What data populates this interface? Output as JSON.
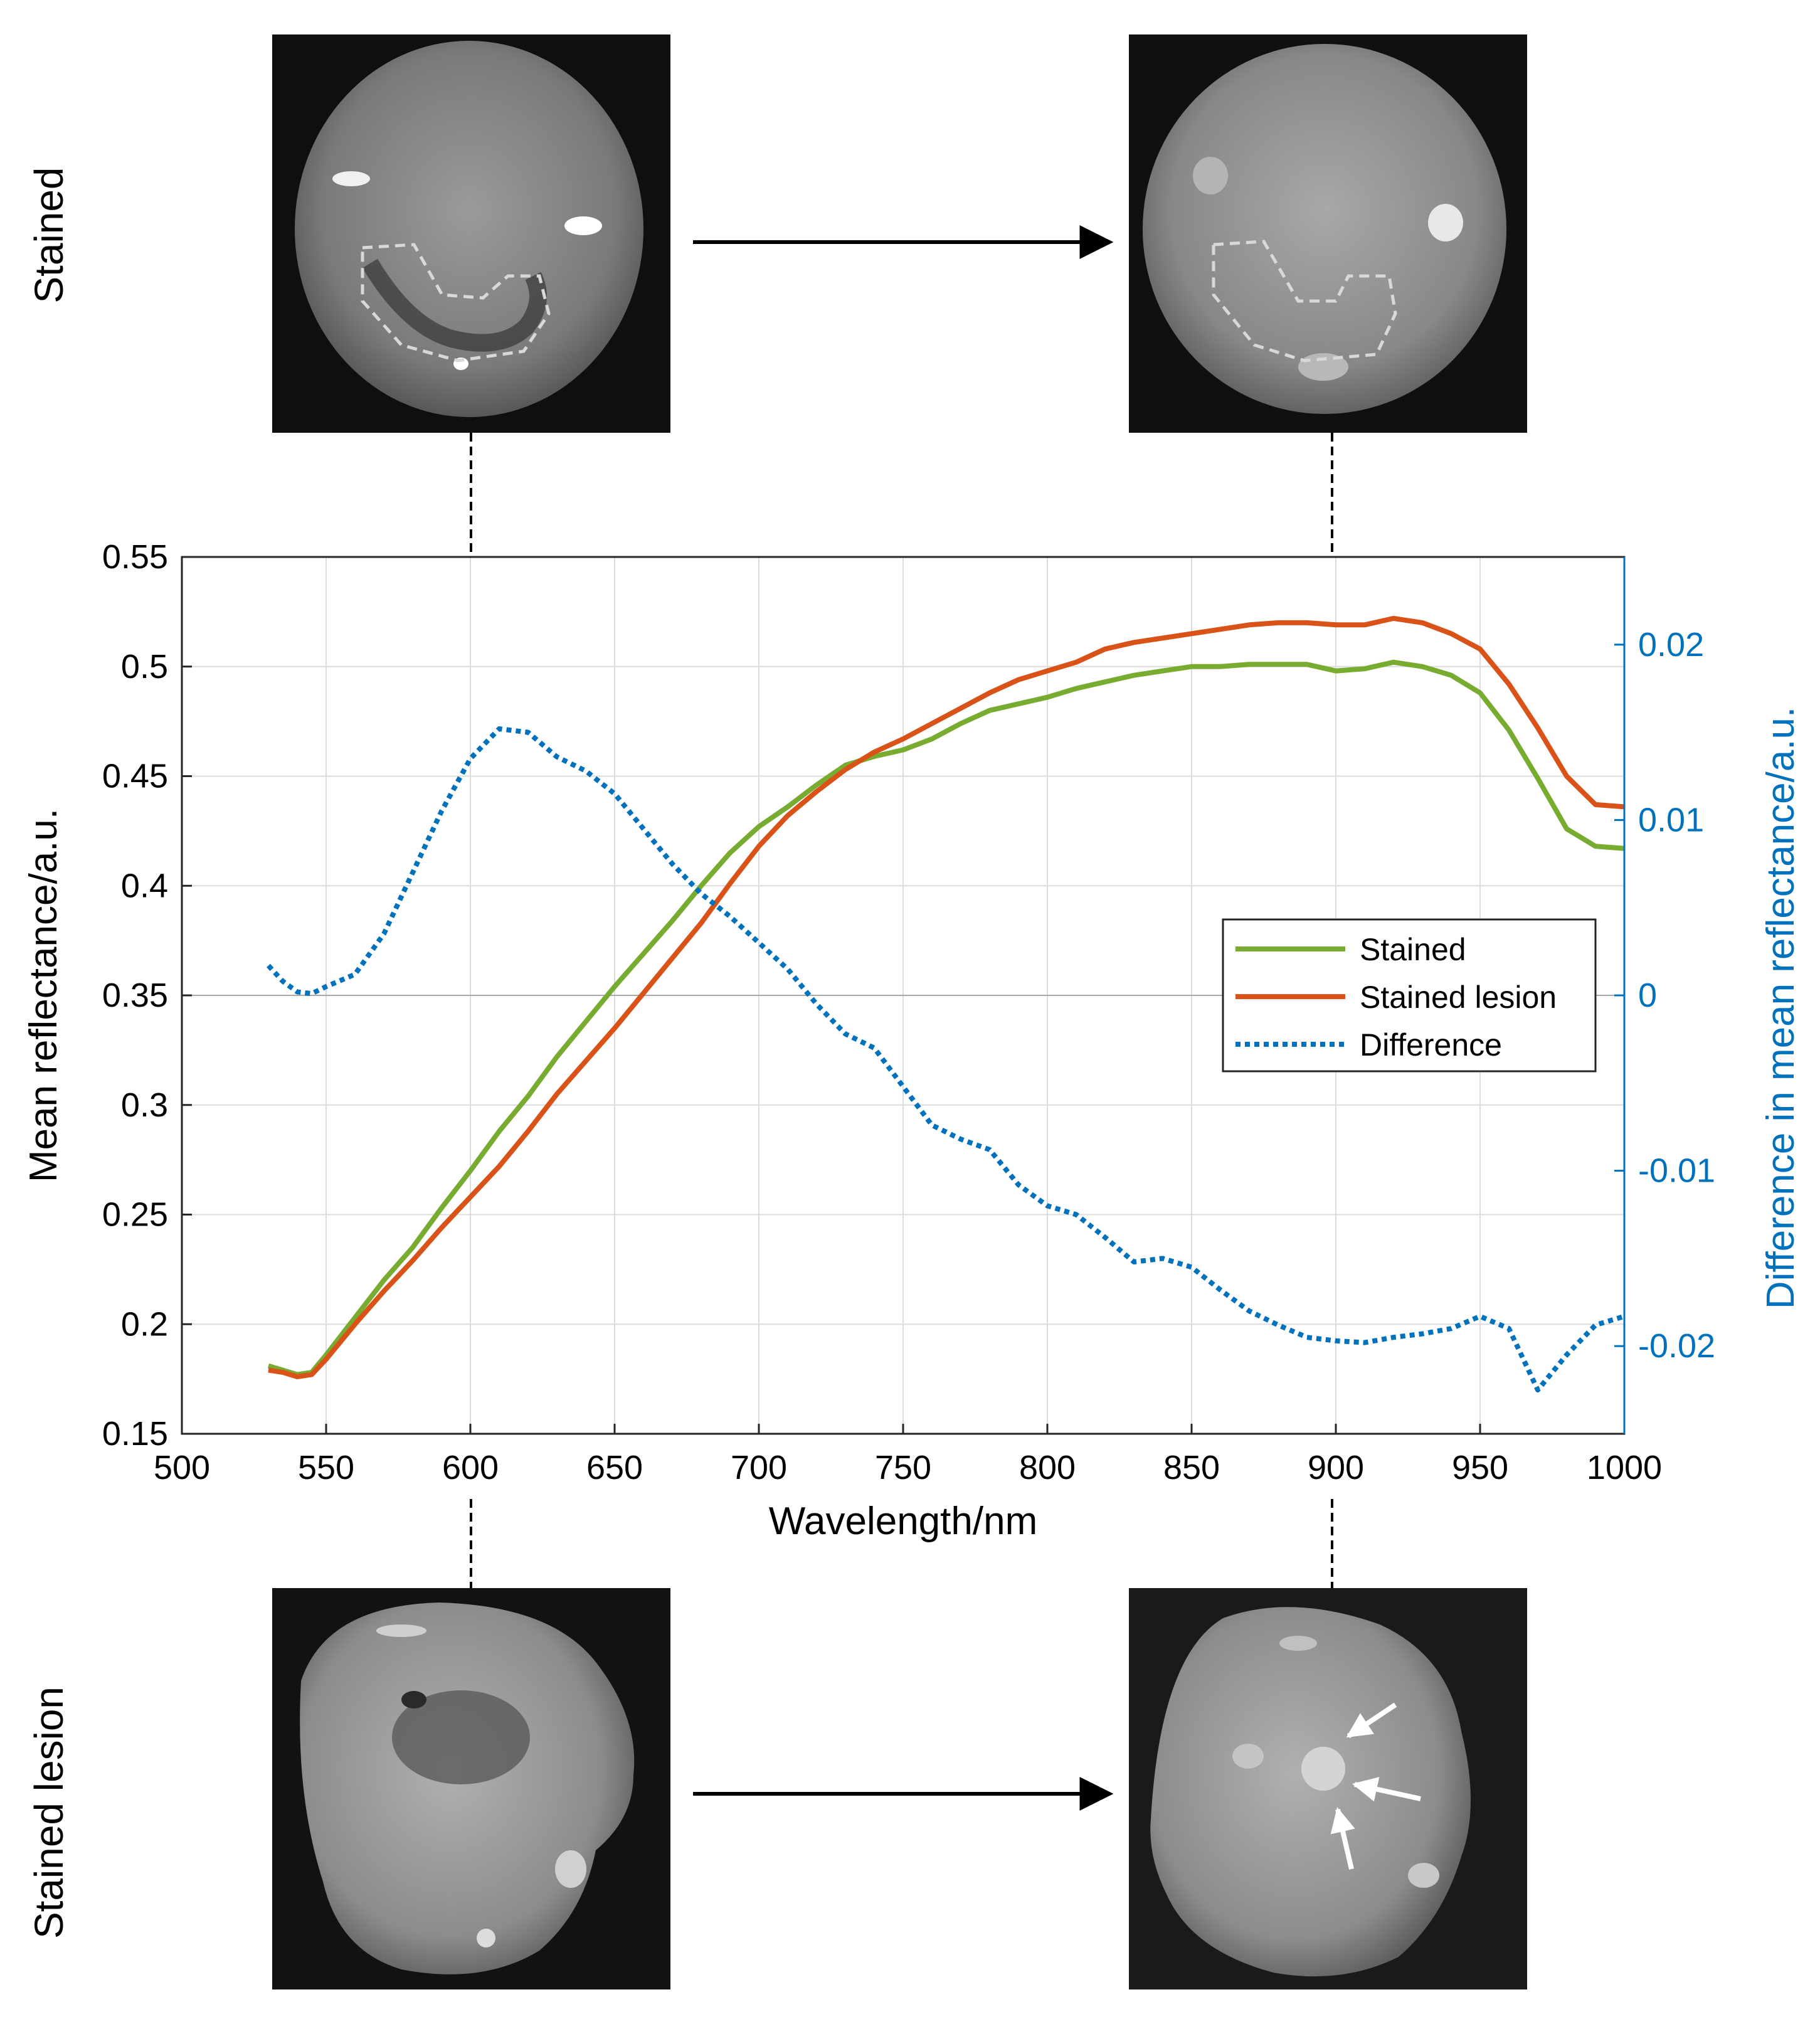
{
  "row_labels": {
    "top": "Stained",
    "bottom": "Stained lesion"
  },
  "images": {
    "top_left": "stained tooth image at 600 nm",
    "top_right": "stained tooth image at 900 nm",
    "bottom_left": "stained lesion tooth image at 600 nm",
    "bottom_right": "stained lesion tooth image at 900 nm"
  },
  "colors": {
    "stained": "#77AC30",
    "lesion": "#D95319",
    "difference": "#0072BD",
    "grid": "#dcdcdc",
    "right_axis": "#0072BD"
  },
  "chart_data": {
    "type": "line",
    "title": "",
    "xlabel": "Wavelength/nm",
    "ylabel": "Mean reflectance/a.u.",
    "y2label": "Difference in mean reflectance/a.u.",
    "xlim": [
      500,
      1000
    ],
    "ylim": [
      0.15,
      0.55
    ],
    "y2lim": [
      -0.025,
      0.025
    ],
    "grid": true,
    "legend_position": "center-right",
    "xticks": [
      500,
      550,
      600,
      650,
      700,
      750,
      800,
      850,
      900,
      950,
      1000
    ],
    "xtick_labels": [
      "500",
      "550",
      "600",
      "650",
      "700",
      "750",
      "800",
      "850",
      "900",
      "950",
      "1000"
    ],
    "yticks": [
      0.15,
      0.2,
      0.25,
      0.3,
      0.35,
      0.4,
      0.45,
      0.5,
      0.55
    ],
    "ytick_labels": [
      "0.15",
      "0.2",
      "0.25",
      "0.3",
      "0.35",
      "0.4",
      "0.45",
      "0.5",
      "0.55"
    ],
    "y2ticks": [
      -0.02,
      -0.01,
      0,
      0.01,
      0.02
    ],
    "y2tick_labels": [
      "-0.02",
      "-0.01",
      "0",
      "0.01",
      "0.02"
    ],
    "x": [
      530,
      535,
      540,
      545,
      550,
      560,
      570,
      580,
      590,
      600,
      610,
      620,
      630,
      640,
      650,
      660,
      670,
      680,
      690,
      700,
      710,
      720,
      730,
      740,
      750,
      760,
      770,
      780,
      790,
      800,
      810,
      820,
      830,
      840,
      850,
      860,
      870,
      880,
      890,
      900,
      910,
      920,
      930,
      940,
      950,
      960,
      970,
      980,
      990,
      1000
    ],
    "series": [
      {
        "name": "Stained",
        "axis": "left",
        "style": "solid",
        "values": [
          0.181,
          0.179,
          0.177,
          0.178,
          0.186,
          0.203,
          0.22,
          0.235,
          0.253,
          0.27,
          0.288,
          0.304,
          0.322,
          0.338,
          0.354,
          0.369,
          0.384,
          0.4,
          0.415,
          0.427,
          0.436,
          0.446,
          0.455,
          0.459,
          0.462,
          0.467,
          0.474,
          0.48,
          0.483,
          0.486,
          0.49,
          0.493,
          0.496,
          0.498,
          0.5,
          0.5,
          0.501,
          0.501,
          0.501,
          0.498,
          0.499,
          0.502,
          0.5,
          0.496,
          0.488,
          0.471,
          0.449,
          0.426,
          0.418,
          0.417
        ]
      },
      {
        "name": "Stained lesion",
        "axis": "left",
        "style": "solid",
        "values": [
          0.179,
          0.178,
          0.176,
          0.177,
          0.184,
          0.2,
          0.215,
          0.229,
          0.244,
          0.258,
          0.272,
          0.288,
          0.305,
          0.32,
          0.335,
          0.351,
          0.367,
          0.383,
          0.401,
          0.418,
          0.432,
          0.443,
          0.453,
          0.461,
          0.467,
          0.474,
          0.481,
          0.488,
          0.494,
          0.498,
          0.502,
          0.508,
          0.511,
          0.513,
          0.515,
          0.517,
          0.519,
          0.52,
          0.52,
          0.519,
          0.519,
          0.522,
          0.52,
          0.515,
          0.508,
          0.492,
          0.472,
          0.45,
          0.437,
          0.436
        ]
      },
      {
        "name": "Difference",
        "axis": "right",
        "style": "dotted",
        "values": [
          0.0017,
          0.0008,
          0.0002,
          0.0001,
          0.0005,
          0.0012,
          0.0035,
          0.007,
          0.0105,
          0.0135,
          0.0152,
          0.015,
          0.0136,
          0.0128,
          0.0115,
          0.0095,
          0.0075,
          0.0058,
          0.0045,
          0.003,
          0.0015,
          -0.0005,
          -0.0022,
          -0.003,
          -0.0052,
          -0.0074,
          -0.0082,
          -0.0088,
          -0.0108,
          -0.012,
          -0.0125,
          -0.0138,
          -0.0152,
          -0.015,
          -0.0155,
          -0.0168,
          -0.018,
          -0.0188,
          -0.0195,
          -0.0197,
          -0.0198,
          -0.0195,
          -0.0193,
          -0.019,
          -0.0183,
          -0.019,
          -0.0225,
          -0.0205,
          -0.0188,
          -0.0183
        ]
      }
    ]
  }
}
